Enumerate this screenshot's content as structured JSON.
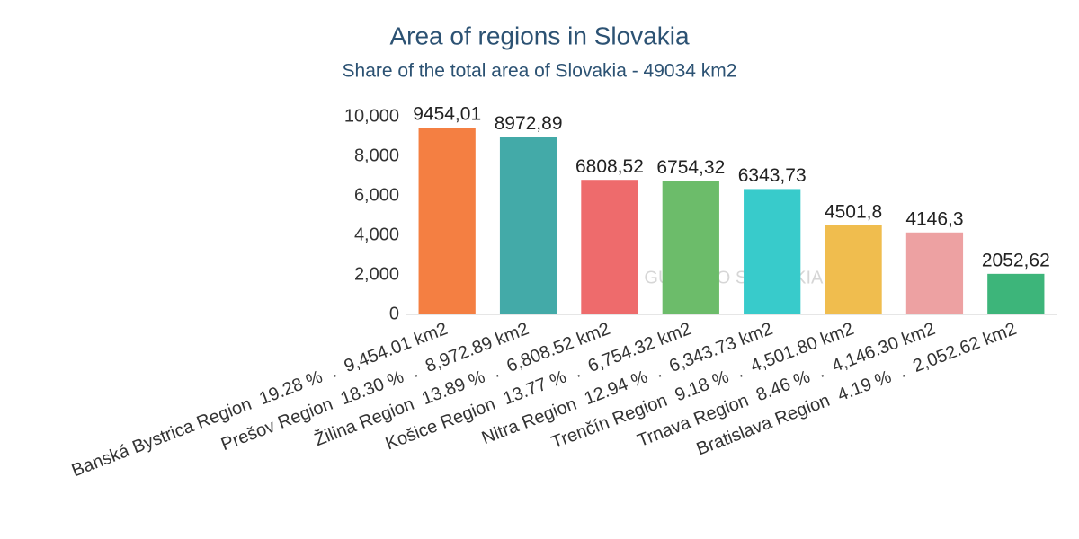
{
  "chart_data": {
    "type": "bar",
    "title": "Area of regions in Slovakia",
    "subtitle": "Share of the total area of Slovakia - 49034 km2",
    "watermark": "GUIDE TO SLOVAKIA.COM",
    "categories": [
      "Banská Bystrica Region  19.28 %  .  9,454.01 km2",
      "Prešov Region  18.30 %  .  8,972.89 km2",
      "Žilina Region  13.89 %  .  6,808.52 km2",
      "Košice Region  13.77 %  .  6,754.32 km2",
      "Nitra Region  12.94 %  .  6,343.73 km2",
      "Trenčín Region  9.18 %  .  4,501.80 km2",
      "Trnava Region  8.46 %  .  4,146.30 km2",
      "Bratislava Region  4.19 %  .  2,052.62 km2"
    ],
    "values": [
      9454.01,
      8972.89,
      6808.52,
      6754.32,
      6343.73,
      4501.8,
      4146.3,
      2052.62
    ],
    "value_labels": [
      "9454,01",
      "8972,89",
      "6808,52",
      "6754,32",
      "6343,73",
      "4501,8",
      "4146,3",
      "2052,62"
    ],
    "colors": [
      "#f47f42",
      "#43aaa8",
      "#ee6b6c",
      "#6cbc6a",
      "#38cbcb",
      "#f0bd4e",
      "#eda1a2",
      "#3db57a"
    ],
    "ylim": [
      0,
      10000
    ],
    "yticks": [
      0,
      {
        "value": 2000,
        "label": "2,000"
      },
      {
        "value": 4000,
        "label": "4,000"
      },
      {
        "value": 6000,
        "label": "6,000"
      },
      {
        "value": 8000,
        "label": "8,000"
      },
      {
        "value": 10000,
        "label": "10,000"
      }
    ],
    "grid": false
  }
}
